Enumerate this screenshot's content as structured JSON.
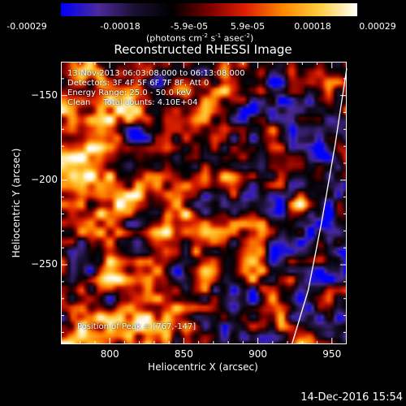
{
  "colorbar": {
    "ticks": [
      "-0.00029",
      "-0.00018",
      "-5.9e-05",
      "5.9e-05",
      "0.00018",
      "0.00029"
    ],
    "units_prefix": "(photons cm",
    "units_exp1": "-2",
    "units_mid1": " s",
    "units_exp2": "-1",
    "units_mid2": " asec",
    "units_exp3": "-2",
    "units_suffix": ")",
    "colors": [
      "#0000ff",
      "#4b2a99",
      "#1a1030",
      "#000000",
      "#7a0000",
      "#e02000",
      "#ff8800",
      "#ffd040",
      "#ffffff"
    ]
  },
  "chart_data": {
    "type": "heatmap",
    "title": "Reconstructed RHESSI Image",
    "xlabel": "Heliocentric X (arcsec)",
    "ylabel": "Heliocentric Y (arcsec)",
    "xlim": [
      767,
      960
    ],
    "ylim": [
      -297,
      -130
    ],
    "xticks": [
      800,
      850,
      900,
      950
    ],
    "yticks": [
      -150,
      -200,
      -250
    ],
    "zlim": [
      -0.00029,
      0.00029
    ],
    "annotations": [
      "13-Nov-2013 06:03:08.000 to 06:13:08.000",
      "Detectors: 3F 4F 5F 6F 7F 8F, Att 0",
      "Energy Range: 25.0 - 50.0 keV",
      "Clean     Total counts: 4.10E+04"
    ],
    "peak_label": "Position of Peak = [767,-147]",
    "limb_curve_x": [
      960,
      952,
      943,
      934,
      923
    ],
    "limb_curve_y": [
      -134,
      -180,
      -225,
      -265,
      -297
    ],
    "dominant_regions": [
      {
        "label": "bright",
        "x_range": [
          767,
          870
        ],
        "y_range": [
          -297,
          -140
        ]
      },
      {
        "label": "dim",
        "x_range": [
          870,
          960
        ],
        "y_range": [
          -297,
          -130
        ]
      }
    ]
  },
  "footer": {
    "timestamp": "14-Dec-2016 15:54"
  }
}
